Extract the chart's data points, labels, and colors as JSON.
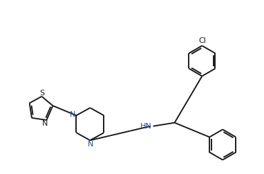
{
  "bg_color": "#ffffff",
  "line_color": "#1a1a1a",
  "label_color_N": "#1a4faa",
  "label_color_S": "#1a1a1a",
  "lw": 1.4,
  "figsize": [
    3.82,
    2.52
  ],
  "dpi": 100,
  "xlim": [
    0,
    10
  ],
  "ylim": [
    0,
    6.6
  ]
}
